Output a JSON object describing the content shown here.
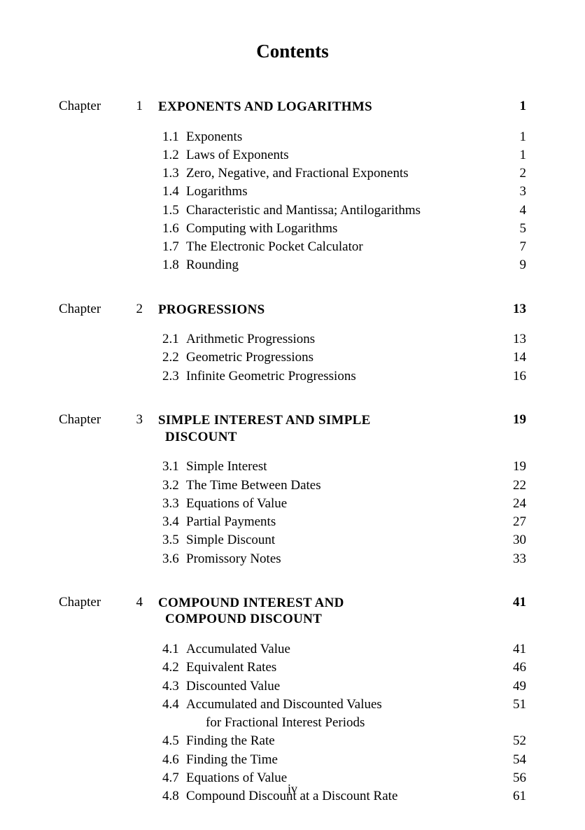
{
  "title": "Contents",
  "chapter_word": "Chapter",
  "folio": "iv",
  "chapters": [
    {
      "num": "1",
      "title": "EXPONENTS AND LOGARITHMS",
      "page": "1",
      "sections": [
        {
          "num": "1.1",
          "title": "Exponents",
          "page": "1"
        },
        {
          "num": "1.2",
          "title": "Laws of Exponents",
          "page": "1"
        },
        {
          "num": "1.3",
          "title": "Zero, Negative, and Fractional Exponents",
          "page": "2"
        },
        {
          "num": "1.4",
          "title": "Logarithms",
          "page": "3"
        },
        {
          "num": "1.5",
          "title": "Characteristic and Mantissa; Antilogarithms",
          "page": "4"
        },
        {
          "num": "1.6",
          "title": "Computing with Logarithms",
          "page": "5"
        },
        {
          "num": "1.7",
          "title": "The Electronic Pocket Calculator",
          "page": "7"
        },
        {
          "num": "1.8",
          "title": "Rounding",
          "page": "9"
        }
      ]
    },
    {
      "num": "2",
      "title": "PROGRESSIONS",
      "page": "13",
      "sections": [
        {
          "num": "2.1",
          "title": "Arithmetic Progressions",
          "page": "13"
        },
        {
          "num": "2.2",
          "title": "Geometric Progressions",
          "page": "14"
        },
        {
          "num": "2.3",
          "title": "Infinite Geometric Progressions",
          "page": "16"
        }
      ]
    },
    {
      "num": "3",
      "title": "SIMPLE INTEREST AND SIMPLE DISCOUNT",
      "title_line1": "SIMPLE INTEREST AND SIMPLE",
      "title_line2": "DISCOUNT",
      "page": "19",
      "sections": [
        {
          "num": "3.1",
          "title": "Simple Interest",
          "page": "19"
        },
        {
          "num": "3.2",
          "title": "The Time Between Dates",
          "page": "22"
        },
        {
          "num": "3.3",
          "title": "Equations of Value",
          "page": "24"
        },
        {
          "num": "3.4",
          "title": "Partial Payments",
          "page": "27"
        },
        {
          "num": "3.5",
          "title": "Simple Discount",
          "page": "30"
        },
        {
          "num": "3.6",
          "title": "Promissory Notes",
          "page": "33"
        }
      ]
    },
    {
      "num": "4",
      "title": "COMPOUND INTEREST AND COMPOUND DISCOUNT",
      "title_line1": "COMPOUND INTEREST AND",
      "title_line2": "COMPOUND DISCOUNT",
      "page": "41",
      "sections": [
        {
          "num": "4.1",
          "title": "Accumulated Value",
          "page": "41"
        },
        {
          "num": "4.2",
          "title": "Equivalent Rates",
          "page": "46"
        },
        {
          "num": "4.3",
          "title": "Discounted Value",
          "page": "49"
        },
        {
          "num": "4.4",
          "title": "Accumulated and Discounted Values",
          "title_cont": "for Fractional Interest Periods",
          "page": "51"
        },
        {
          "num": "4.5",
          "title": "Finding the Rate",
          "page": "52"
        },
        {
          "num": "4.6",
          "title": "Finding the Time",
          "page": "54"
        },
        {
          "num": "4.7",
          "title": "Equations of Value",
          "page": "56"
        },
        {
          "num": "4.8",
          "title": "Compound Discount at a Discount Rate",
          "page": "61"
        }
      ]
    }
  ]
}
